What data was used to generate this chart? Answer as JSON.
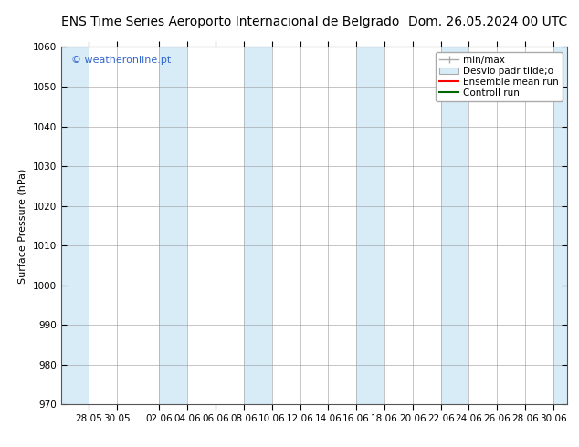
{
  "title_left": "ENS Time Series Aeroporto Internacional de Belgrado",
  "title_right": "Dom. 26.05.2024 00 UTC",
  "ylabel": "Surface Pressure (hPa)",
  "ylim": [
    970,
    1060
  ],
  "yticks": [
    970,
    980,
    990,
    1000,
    1010,
    1020,
    1030,
    1040,
    1050,
    1060
  ],
  "watermark": "© weatheronline.pt",
  "watermark_color": "#3366cc",
  "bg_color": "#ffffff",
  "plot_bg_color": "#ffffff",
  "band_color": "#d8ecf8",
  "xlabel_dates": [
    "28.05",
    "30.05",
    "02.06",
    "04.06",
    "06.06",
    "08.06",
    "10.06",
    "12.06",
    "14.06",
    "16.06",
    "18.06",
    "20.06",
    "22.06",
    "24.06",
    "26.06",
    "28.06",
    "30.06"
  ],
  "legend_entries": [
    "min/max",
    "Desvio padr tilde;o",
    "Ensemble mean run",
    "Controll run"
  ],
  "title_fontsize": 10,
  "axis_fontsize": 8,
  "tick_fontsize": 7.5,
  "legend_fontsize": 7.5
}
